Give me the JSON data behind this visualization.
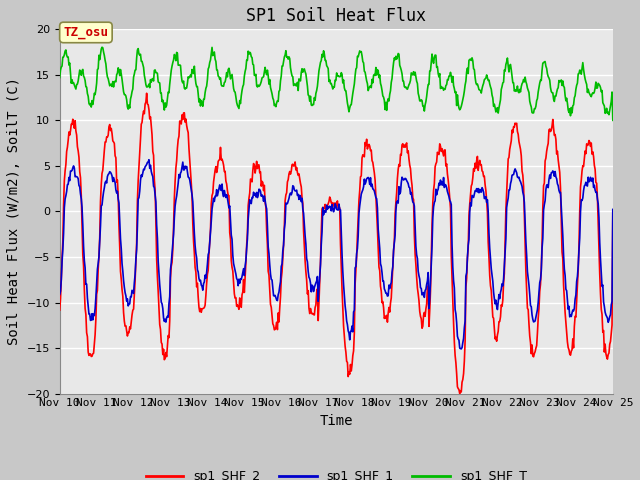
{
  "title": "SP1 Soil Heat Flux",
  "xlabel": "Time",
  "ylabel": "Soil Heat Flux (W/m2), SoilT (C)",
  "xlim_days": [
    10,
    25
  ],
  "ylim": [
    -20,
    20
  ],
  "yticks": [
    -20,
    -15,
    -10,
    -5,
    0,
    5,
    10,
    15,
    20
  ],
  "xtick_labels": [
    "Nov 10",
    "Nov 11",
    "Nov 12",
    "Nov 13",
    "Nov 14",
    "Nov 15",
    "Nov 16",
    "Nov 17",
    "Nov 18",
    "Nov 19",
    "Nov 20",
    "Nov 21",
    "Nov 22",
    "Nov 23",
    "Nov 24",
    "Nov 25"
  ],
  "xtick_positions": [
    10,
    11,
    12,
    13,
    14,
    15,
    16,
    17,
    18,
    19,
    20,
    21,
    22,
    23,
    24,
    25
  ],
  "color_shf2": "#ff0000",
  "color_shf1": "#0000cc",
  "color_shft": "#00bb00",
  "legend_labels": [
    "sp1_SHF_2",
    "sp1_SHF_1",
    "sp1_SHF_T"
  ],
  "annotation_text": "TZ_osu",
  "annotation_color": "#cc0000",
  "annotation_bg": "#ffffcc",
  "annotation_border": "#888844",
  "plot_bg": "#e8e8e8",
  "fig_bg": "#c8c8c8",
  "grid_color": "#ffffff",
  "linewidth": 1.2,
  "title_fontsize": 12,
  "axis_fontsize": 10,
  "tick_fontsize": 8
}
